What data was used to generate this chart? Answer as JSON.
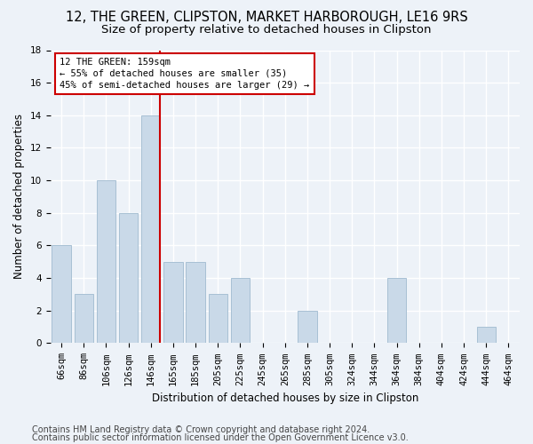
{
  "title1": "12, THE GREEN, CLIPSTON, MARKET HARBOROUGH, LE16 9RS",
  "title2": "Size of property relative to detached houses in Clipston",
  "xlabel": "Distribution of detached houses by size in Clipston",
  "ylabel": "Number of detached properties",
  "categories": [
    "66sqm",
    "86sqm",
    "106sqm",
    "126sqm",
    "146sqm",
    "165sqm",
    "185sqm",
    "205sqm",
    "225sqm",
    "245sqm",
    "265sqm",
    "285sqm",
    "305sqm",
    "324sqm",
    "344sqm",
    "364sqm",
    "384sqm",
    "404sqm",
    "424sqm",
    "444sqm",
    "464sqm"
  ],
  "values": [
    6,
    3,
    10,
    8,
    14,
    5,
    5,
    3,
    4,
    0,
    0,
    2,
    0,
    0,
    0,
    4,
    0,
    0,
    0,
    1,
    0
  ],
  "bar_color": "#c9d9e8",
  "bar_edge_color": "#a8c0d4",
  "subject_line_color": "#cc0000",
  "subject_bar_index": 4,
  "annotation_line1": "12 THE GREEN: 159sqm",
  "annotation_line2": "← 55% of detached houses are smaller (35)",
  "annotation_line3": "45% of semi-detached houses are larger (29) →",
  "annotation_box_color": "#cc0000",
  "ylim": [
    0,
    18
  ],
  "yticks": [
    0,
    2,
    4,
    6,
    8,
    10,
    12,
    14,
    16,
    18
  ],
  "footer1": "Contains HM Land Registry data © Crown copyright and database right 2024.",
  "footer2": "Contains public sector information licensed under the Open Government Licence v3.0.",
  "bg_color": "#edf2f8",
  "plot_bg_color": "#edf2f8",
  "grid_color": "#ffffff",
  "title1_fontsize": 10.5,
  "title2_fontsize": 9.5,
  "xlabel_fontsize": 8.5,
  "ylabel_fontsize": 8.5,
  "tick_fontsize": 7.5,
  "footer_fontsize": 7.0,
  "annotation_fontsize": 7.5
}
